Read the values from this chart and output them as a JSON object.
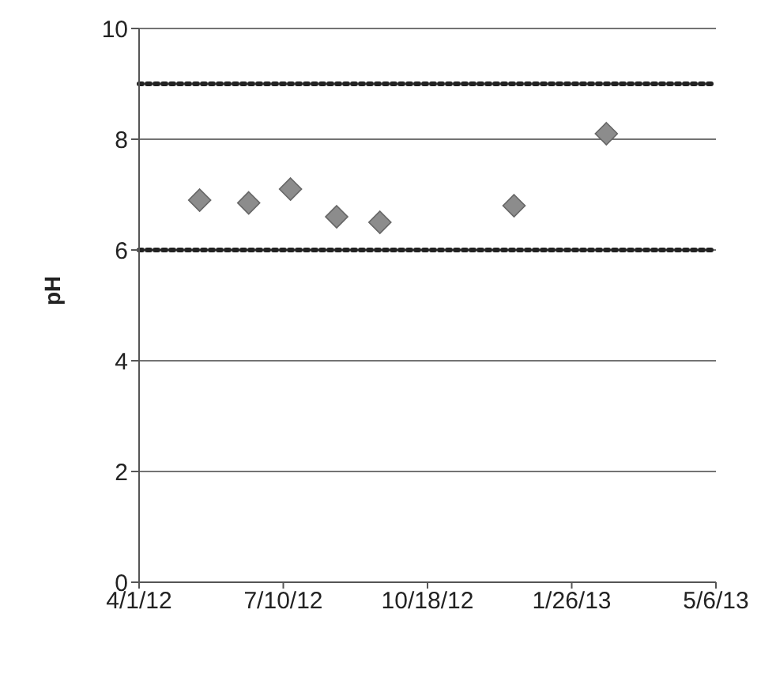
{
  "chart_data": {
    "type": "scatter",
    "ylabel": "pH",
    "x": [
      "2012-05-13",
      "2012-06-16",
      "2012-07-15",
      "2012-08-16",
      "2012-09-15",
      "2012-12-17",
      "2013-02-19"
    ],
    "series": [
      {
        "color": "#8c8c8c",
        "values": [
          6.9,
          6.85,
          7.1,
          6.6,
          6.5,
          6.8,
          8.1
        ]
      }
    ],
    "xlim": [
      "2012-04-01",
      "2013-05-06"
    ],
    "xticks": [
      {
        "value": "2012-04-01",
        "label": "4/1/12"
      },
      {
        "value": "2012-07-10",
        "label": "7/10/12"
      },
      {
        "value": "2012-10-18",
        "label": "10/18/12"
      },
      {
        "value": "2013-01-26",
        "label": "1/26/13"
      },
      {
        "value": "2013-05-06",
        "label": "5/6/13"
      }
    ],
    "ylim": [
      0,
      10
    ],
    "yticks": [
      0,
      2,
      4,
      6,
      8,
      10
    ],
    "grid": "y",
    "marker": "diamond",
    "ref_lines": [
      {
        "axis": "y",
        "value": 9,
        "color": "#222222",
        "line_style": "dotted"
      },
      {
        "axis": "y",
        "value": 6,
        "color": "#222222",
        "line_style": "dotted"
      }
    ]
  }
}
